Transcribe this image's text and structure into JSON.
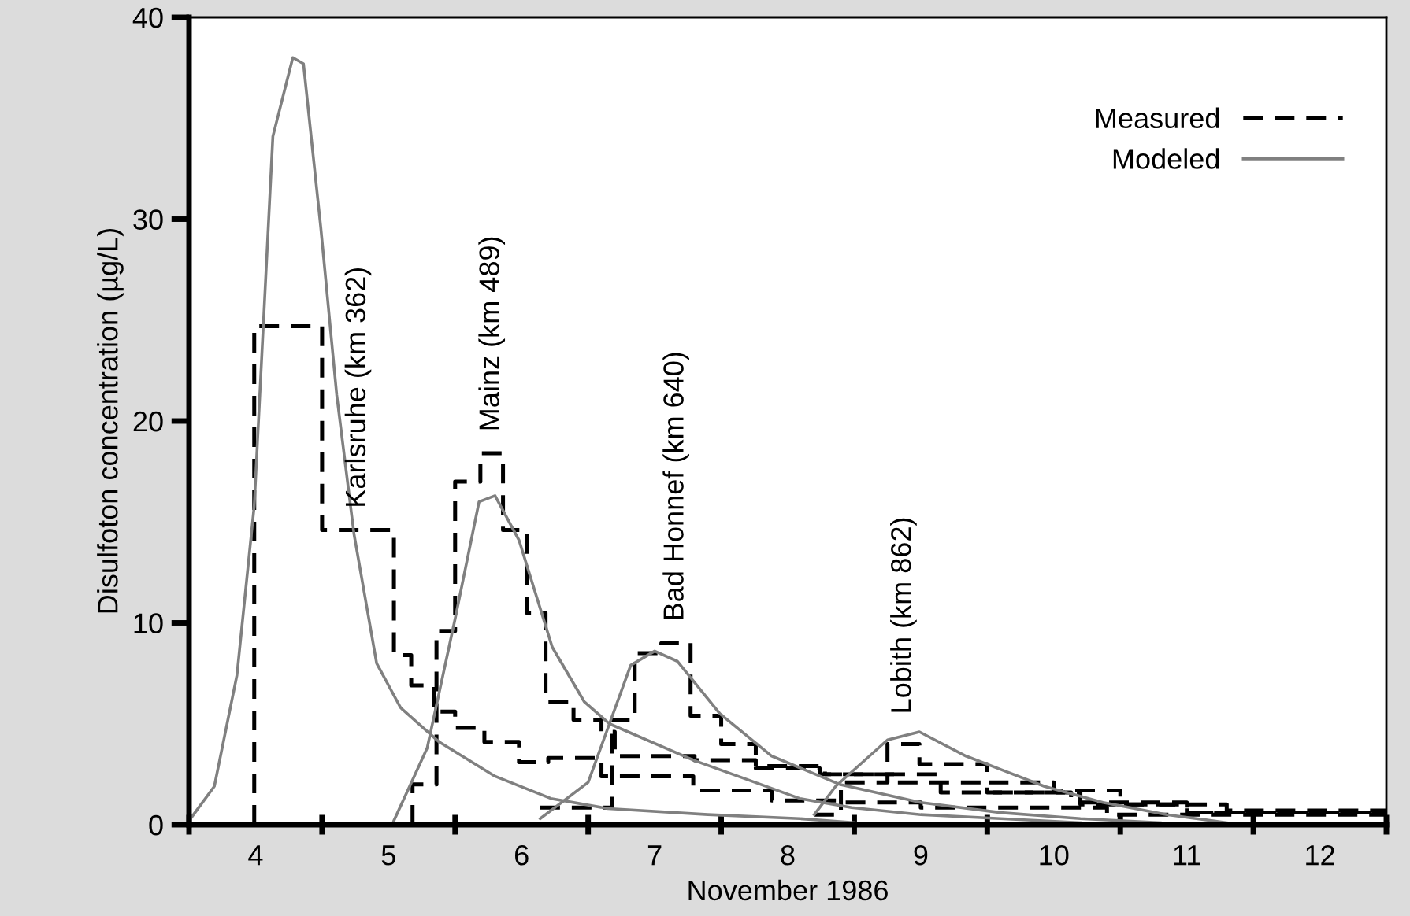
{
  "chart_data": {
    "type": "line",
    "xlabel": "November 1986",
    "ylabel": "Disulfoton concentration (µg/L)",
    "xlim": [
      3.5,
      12.5
    ],
    "ylim": [
      0,
      40
    ],
    "xticks": [
      {
        "value": 3.5,
        "label": null
      },
      {
        "value": 4,
        "label": "4"
      },
      {
        "value": 4.5,
        "label": null
      },
      {
        "value": 5,
        "label": "5"
      },
      {
        "value": 5.5,
        "label": null
      },
      {
        "value": 6,
        "label": "6"
      },
      {
        "value": 6.5,
        "label": null
      },
      {
        "value": 7,
        "label": "7"
      },
      {
        "value": 7.5,
        "label": null
      },
      {
        "value": 8,
        "label": "8"
      },
      {
        "value": 8.5,
        "label": null
      },
      {
        "value": 9,
        "label": "9"
      },
      {
        "value": 9.5,
        "label": null
      },
      {
        "value": 10,
        "label": "10"
      },
      {
        "value": 10.5,
        "label": null
      },
      {
        "value": 11,
        "label": "11"
      },
      {
        "value": 11.5,
        "label": null
      },
      {
        "value": 12,
        "label": "12"
      },
      {
        "value": 12.5,
        "label": null
      }
    ],
    "yticks": [
      0,
      10,
      20,
      30,
      40
    ],
    "grid": false,
    "legend": "top right",
    "series": [
      {
        "name": "Measured",
        "type": "step",
        "line_style": "dashed",
        "color": "#000000",
        "x": [
          3.99,
          3.99,
          4.5,
          5.04,
          5.17,
          5.34,
          5.5,
          5.72,
          5.98,
          6.2,
          6.6,
          7.29,
          7.88,
          8.39,
          9.0,
          10.4,
          12.5
        ],
        "values": [
          0,
          24.7,
          14.6,
          8.4,
          6.9,
          5.6,
          4.8,
          4.1,
          3.1,
          3.3,
          2.4,
          1.7,
          1.2,
          1.1,
          0.85,
          0.5,
          0.5
        ]
      },
      {
        "type": "step",
        "line_style": "dashed",
        "color": "#000000",
        "x": [
          5.18,
          5.18,
          5.36,
          5.5,
          5.69,
          5.86,
          6.04,
          6.18,
          6.39,
          6.6,
          6.7,
          7.3,
          7.76,
          8.28,
          9.15,
          10.13,
          11.0,
          12.5
        ],
        "values": [
          0,
          2.0,
          9.6,
          17.0,
          18.4,
          14.6,
          10.5,
          6.1,
          5.2,
          4.6,
          3.4,
          3.2,
          2.9,
          2.5,
          1.6,
          1.1,
          0.6,
          0.4
        ]
      },
      {
        "type": "step",
        "line_style": "dashed",
        "color": "#000000",
        "x": [
          6.14,
          6.68,
          6.85,
          7.05,
          7.27,
          7.5,
          7.76,
          8.24,
          8.8,
          9.5,
          10.2,
          11.0,
          12.5
        ],
        "values": [
          0.85,
          5.2,
          8.5,
          9.0,
          5.4,
          4.0,
          2.8,
          2.5,
          2.1,
          1.6,
          1.0,
          0.6,
          0.4
        ]
      },
      {
        "type": "step",
        "line_style": "dashed",
        "color": "#000000",
        "x": [
          8.2,
          8.4,
          8.75,
          8.99,
          9.5,
          10.0,
          10.5,
          11.3,
          12.5
        ],
        "values": [
          0.5,
          2.1,
          4.0,
          3.0,
          2.1,
          1.7,
          1.0,
          0.7,
          0.5
        ]
      },
      {
        "name": "Modeled",
        "line_style": "solid",
        "color": "#808080",
        "x": [
          3.5,
          3.69,
          3.86,
          3.99,
          4.13,
          4.28,
          4.36,
          4.49,
          4.61,
          4.74,
          4.91,
          5.09,
          5.38,
          5.8,
          6.22,
          6.65,
          7.4,
          8.09,
          8.5
        ],
        "values": [
          0.2,
          1.9,
          7.4,
          15.8,
          34.1,
          38.0,
          37.7,
          29.6,
          21.3,
          14.4,
          8.0,
          5.8,
          4.1,
          2.4,
          1.3,
          0.8,
          0.5,
          0.3,
          0.1
        ]
      },
      {
        "line_style": "solid",
        "color": "#808080",
        "x": [
          5.04,
          5.29,
          5.5,
          5.68,
          5.8,
          5.98,
          6.23,
          6.47,
          6.66,
          7.29,
          8.09,
          8.48,
          9.0,
          9.6,
          10.2
        ],
        "values": [
          0.2,
          3.8,
          10.2,
          16.0,
          16.3,
          14.1,
          8.8,
          6.1,
          5.0,
          3.2,
          1.3,
          0.85,
          0.5,
          0.3,
          0.1
        ]
      },
      {
        "line_style": "solid",
        "color": "#808080",
        "x": [
          6.14,
          6.5,
          6.66,
          6.82,
          7.0,
          7.17,
          7.49,
          7.88,
          8.39,
          9.0,
          9.6,
          10.2,
          10.8
        ],
        "values": [
          0.3,
          2.1,
          5.0,
          7.9,
          8.6,
          8.1,
          5.5,
          3.4,
          2.0,
          1.1,
          0.6,
          0.3,
          0.1
        ]
      },
      {
        "line_style": "solid",
        "color": "#808080",
        "x": [
          8.2,
          8.36,
          8.75,
          8.99,
          9.34,
          9.93,
          10.37,
          10.85,
          11.3
        ],
        "values": [
          0.5,
          1.9,
          4.2,
          4.6,
          3.4,
          1.9,
          1.1,
          0.5,
          0.1
        ]
      }
    ],
    "annotations": [
      "Karlsruhe (km 362)",
      "Mainz (km 489)",
      "Bad Honnef (km 640)",
      "Lobith (km 862)"
    ]
  }
}
